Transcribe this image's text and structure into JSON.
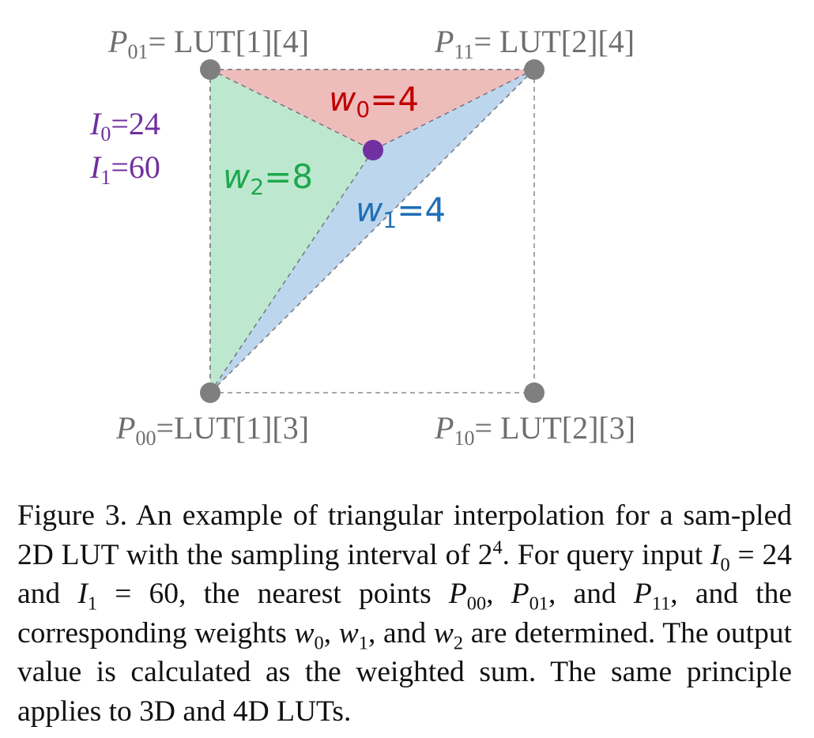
{
  "points": {
    "p01": {
      "name": "P",
      "sub": "01",
      "value": "= LUT[1][4]"
    },
    "p11": {
      "name": "P",
      "sub": "11",
      "value": "= LUT[2][4]"
    },
    "p00": {
      "name": "P",
      "sub": "00",
      "value": "=LUT[1][3]"
    },
    "p10": {
      "name": "P",
      "sub": "10",
      "value": "= LUT[2][3]"
    }
  },
  "inputs": {
    "i0": {
      "name": "I",
      "sub": "0",
      "value": "=24"
    },
    "i1": {
      "name": "I",
      "sub": "1",
      "value": "=60"
    }
  },
  "weights": {
    "w0": {
      "name": "w",
      "sub": "0",
      "value": "=4",
      "color": "#c00000"
    },
    "w1": {
      "name": "w",
      "sub": "1",
      "value": "=4",
      "color": "#1f6fb5"
    },
    "w2": {
      "name": "w",
      "sub": "2",
      "value": "=8",
      "color": "#1fa84f"
    }
  },
  "colors": {
    "triangle_w0": "#efbcbc",
    "triangle_w1": "#bcd6ee",
    "triangle_w2": "#bde8cf",
    "grid_point": "#7f7f7f",
    "query_point": "#7030a0"
  },
  "caption": {
    "figure_label": "Figure 3.",
    "text_1": "An example of triangular interpolation for a sam-pled 2D LUT with the sampling interval of 2",
    "interval_exponent": "4",
    "text_2": ". For query input",
    "eq_i0": "= 24 and",
    "eq_i1": "= 60, the nearest points",
    "text_3": "and",
    "text_4": ", and the corresponding weights",
    "text_5": ", and",
    "text_6": "are determined. The output value is calculated as the weighted sum. The same principle applies to 3D and 4D LUTs."
  }
}
